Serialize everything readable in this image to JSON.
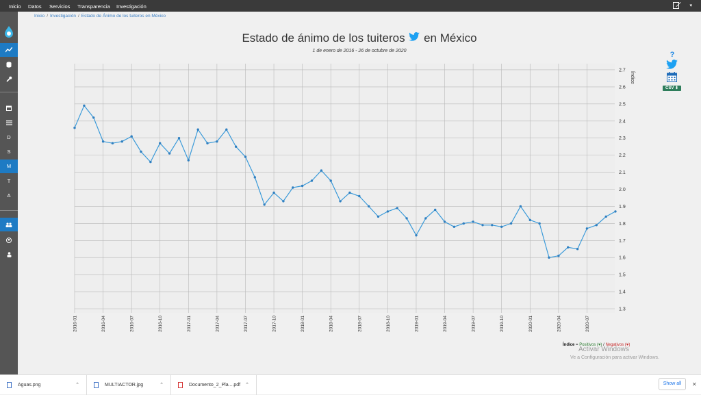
{
  "topbar": {
    "nav": [
      "Inicio",
      "Datos",
      "Servicios",
      "Transparencia",
      "Investigación"
    ]
  },
  "sidebar": {
    "letters": [
      "D",
      "S",
      "M",
      "T",
      "A"
    ],
    "active_color": "#1e7bc4"
  },
  "breadcrumb": [
    "Inicio",
    "Investigación",
    "Estado de Ánimo de los tuiteros en México"
  ],
  "page": {
    "title_before": "Estado de ánimo de los tuiteros",
    "title_after": "en México",
    "subtitle": "1 de enero de 2016 - 26 de octubre de 2020"
  },
  "tools": {
    "help": "?",
    "csv": "CSV ⬇"
  },
  "legend": {
    "label": "Índice",
    "eq": " = ",
    "positives": "Positivos (♥)",
    "slash": " / ",
    "negatives": "Negativos (♥)"
  },
  "watermark": {
    "title": "Activar Windows",
    "text": "Ve a Configuración para activar Windows."
  },
  "downloads": {
    "items": [
      "Aguas.png",
      "MULTIACTOR.jpg",
      "Documento_2_Pla....pdf"
    ],
    "show_all": "Show all"
  },
  "chart_data": {
    "type": "line",
    "title": "Estado de ánimo de los tuiteros en México",
    "subtitle": "1 de enero de 2016 - 26 de octubre de 2020",
    "ylabel": "Índice",
    "ylim": [
      1.3,
      2.75
    ],
    "yticks": [
      2.7,
      2.6,
      2.5,
      2.4,
      2.3,
      2.2,
      2.1,
      2.0,
      1.9,
      1.8,
      1.7,
      1.6,
      1.5,
      1.4,
      1.3
    ],
    "ytick_labels": [
      "2.7",
      "2.6",
      "2.5",
      "2.4",
      "2.3",
      "2.2",
      "2.1",
      "2.0",
      "1.9",
      "1.8",
      "1.7",
      "1.6",
      "1.5",
      "1.4",
      "1.3"
    ],
    "xticks": [
      "2016-01",
      "2016-04",
      "2016-07",
      "2016-10",
      "2017-01",
      "2017-04",
      "2017-07",
      "2017-10",
      "2018-01",
      "2018-04",
      "2018-07",
      "2018-10",
      "2019-01",
      "2019-04",
      "2019-07",
      "2019-10",
      "2020-01",
      "2020-04",
      "2020-07"
    ],
    "grid": true,
    "color": "#3a9ad9",
    "series": [
      {
        "x": [
          "2016-01",
          "2016-02",
          "2016-03",
          "2016-04",
          "2016-05",
          "2016-06",
          "2016-07",
          "2016-08",
          "2016-09",
          "2016-10",
          "2016-11",
          "2016-12",
          "2017-01",
          "2017-02",
          "2017-03",
          "2017-04",
          "2017-05",
          "2017-06",
          "2017-07",
          "2017-08",
          "2017-09",
          "2017-10",
          "2017-11",
          "2017-12",
          "2018-01",
          "2018-02",
          "2018-03",
          "2018-04",
          "2018-05",
          "2018-06",
          "2018-07",
          "2018-08",
          "2018-09",
          "2018-10",
          "2018-11",
          "2018-12",
          "2019-01",
          "2019-02",
          "2019-03",
          "2019-04",
          "2019-05",
          "2019-06",
          "2019-07",
          "2019-08",
          "2019-09",
          "2019-10",
          "2019-11",
          "2019-12",
          "2020-01",
          "2020-02",
          "2020-03",
          "2020-04",
          "2020-05",
          "2020-06",
          "2020-07",
          "2020-08",
          "2020-09",
          "2020-10"
        ],
        "values": [
          2.36,
          2.49,
          2.42,
          2.28,
          2.27,
          2.28,
          2.31,
          2.22,
          2.16,
          2.27,
          2.21,
          2.3,
          2.17,
          2.35,
          2.27,
          2.28,
          2.35,
          2.25,
          2.19,
          2.07,
          1.91,
          1.98,
          1.93,
          2.01,
          2.02,
          2.05,
          2.11,
          2.05,
          1.93,
          1.98,
          1.96,
          1.9,
          1.84,
          1.87,
          1.89,
          1.83,
          1.73,
          1.83,
          1.88,
          1.81,
          1.78,
          1.8,
          1.81,
          1.79,
          1.79,
          1.78,
          1.8,
          1.9,
          1.82,
          1.8,
          1.6,
          1.61,
          1.66,
          1.65,
          1.77,
          1.79,
          1.84,
          1.87
        ]
      }
    ]
  }
}
